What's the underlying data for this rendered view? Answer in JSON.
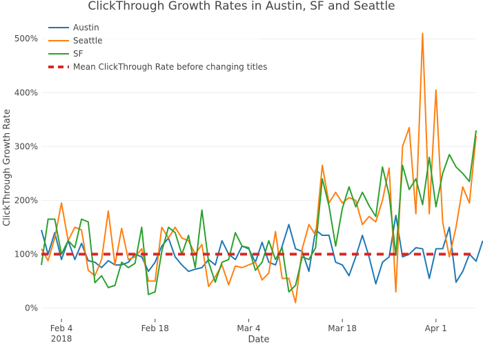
{
  "chart_data": {
    "type": "line",
    "title": "ClickThrough Growth Rates in Austin, SF and Seattle",
    "xlabel": "Date",
    "ylabel": "ClickThrough Growth Rate",
    "x_ticks": [
      {
        "day": 3,
        "label": "Feb 4",
        "sublabel": "2018"
      },
      {
        "day": 17,
        "label": "Feb 18",
        "sublabel": ""
      },
      {
        "day": 31,
        "label": "Mar 4",
        "sublabel": ""
      },
      {
        "day": 45,
        "label": "Mar 18",
        "sublabel": ""
      },
      {
        "day": 59,
        "label": "Apr 1",
        "sublabel": ""
      }
    ],
    "y_ticks": [
      {
        "value": 0,
        "label": "0%"
      },
      {
        "value": 100,
        "label": "100%"
      },
      {
        "value": 200,
        "label": "200%"
      },
      {
        "value": 300,
        "label": "300%"
      },
      {
        "value": 400,
        "label": "400%"
      },
      {
        "value": 500,
        "label": "500%"
      }
    ],
    "xlim": [
      0,
      65
    ],
    "ylim": [
      -20,
      540
    ],
    "x_start": "2018-02-01",
    "x_unit": "days since start",
    "series": [
      {
        "name": "Austin",
        "color": "#1f77b4",
        "values": [
          145,
          100,
          140,
          90,
          125,
          90,
          120,
          88,
          85,
          75,
          88,
          80,
          80,
          85,
          100,
          95,
          68,
          85,
          115,
          130,
          95,
          80,
          68,
          72,
          75,
          90,
          80,
          125,
          100,
          90,
          115,
          110,
          85,
          122,
          85,
          80,
          115,
          155,
          110,
          105,
          68,
          145,
          135,
          135,
          85,
          80,
          60,
          95,
          135,
          95,
          45,
          85,
          95,
          172,
          95,
          100,
          112,
          110,
          55,
          110,
          110,
          150,
          48,
          68,
          100,
          87,
          125
        ]
      },
      {
        "name": "Seattle",
        "color": "#ff7f0e",
        "values": [
          110,
          88,
          130,
          195,
          125,
          150,
          145,
          70,
          60,
          90,
          180,
          80,
          148,
          90,
          95,
          110,
          50,
          50,
          150,
          130,
          150,
          130,
          125,
          100,
          118,
          40,
          58,
          80,
          43,
          78,
          75,
          80,
          85,
          52,
          65,
          142,
          55,
          55,
          10,
          110,
          155,
          135,
          265,
          195,
          215,
          195,
          205,
          200,
          155,
          170,
          160,
          200,
          260,
          30,
          300,
          335,
          175,
          510,
          175,
          405,
          160,
          95,
          150,
          225,
          195,
          320
        ]
      },
      {
        "name": "SF",
        "color": "#2ca02c",
        "values": [
          80,
          165,
          165,
          100,
          125,
          112,
          165,
          160,
          47,
          60,
          38,
          42,
          85,
          75,
          83,
          150,
          25,
          30,
          105,
          150,
          140,
          100,
          135,
          75,
          182,
          85,
          48,
          85,
          90,
          140,
          115,
          112,
          70,
          85,
          125,
          90,
          112,
          30,
          42,
          95,
          90,
          112,
          240,
          190,
          115,
          185,
          225,
          188,
          215,
          190,
          170,
          262,
          210,
          98,
          265,
          220,
          240,
          192,
          280,
          188,
          250,
          285,
          262,
          250,
          235,
          330
        ]
      },
      {
        "name": "Mean ClickThrough Rate before changing titles",
        "color": "#d62728",
        "dashed": true,
        "values": [
          100,
          100
        ]
      }
    ]
  }
}
